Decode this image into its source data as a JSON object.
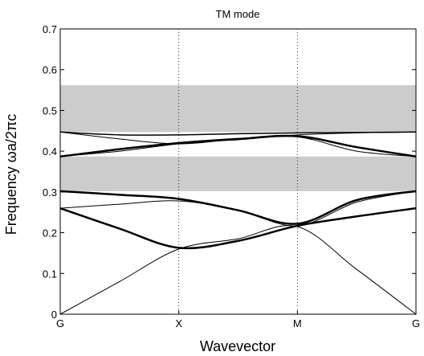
{
  "chart_data": {
    "type": "line",
    "title": "TM mode",
    "xlabel": "Wavevector",
    "ylabel": "Frequency ωa/2πc",
    "x_ticks": [
      "G",
      "X",
      "M",
      "G"
    ],
    "x_tick_positions": [
      0,
      1,
      2,
      3
    ],
    "xlim": [
      0,
      3
    ],
    "ylim": [
      0,
      0.7
    ],
    "y_ticks": [
      "0",
      "0.1",
      "0.2",
      "0.3",
      "0.4",
      "0.5",
      "0.6",
      "0.7"
    ],
    "y_tick_values": [
      0,
      0.1,
      0.2,
      0.3,
      0.4,
      0.5,
      0.6,
      0.7
    ],
    "vertical_gridlines_at": [
      1,
      2
    ],
    "grid_style": "dotted",
    "band_gaps": [
      {
        "from": 0.302,
        "to": 0.387
      },
      {
        "from": 0.447,
        "to": 0.562
      }
    ],
    "band_gap_color": "#cccccc",
    "line_color": "#000000",
    "series": [
      {
        "x": [
          0,
          0.5,
          1,
          1.5,
          2,
          2.5,
          3
        ],
        "values": [
          0.0,
          0.08,
          0.16,
          0.185,
          0.215,
          0.11,
          0.0
        ],
        "weight": 1
      },
      {
        "x": [
          0,
          0.5,
          1,
          1.5,
          2,
          2.5,
          3
        ],
        "values": [
          0.26,
          0.21,
          0.163,
          0.18,
          0.217,
          0.24,
          0.26
        ],
        "weight": 2.5
      },
      {
        "x": [
          0,
          0.5,
          1,
          1.5,
          2,
          2.5,
          3
        ],
        "values": [
          0.26,
          0.27,
          0.278,
          0.255,
          0.217,
          0.275,
          0.302
        ],
        "weight": 1
      },
      {
        "x": [
          0,
          0.5,
          1,
          1.5,
          2,
          2.5,
          3
        ],
        "values": [
          0.302,
          0.293,
          0.283,
          0.255,
          0.222,
          0.28,
          0.302
        ],
        "weight": 2.5
      },
      {
        "x": [
          0,
          0.5,
          1,
          1.5,
          2,
          2.5,
          3
        ],
        "values": [
          0.387,
          0.4,
          0.418,
          0.428,
          0.435,
          0.4,
          0.387
        ],
        "weight": 1
      },
      {
        "x": [
          0,
          0.5,
          1,
          1.5,
          2,
          2.5,
          3
        ],
        "values": [
          0.387,
          0.405,
          0.42,
          0.43,
          0.437,
          0.41,
          0.387
        ],
        "weight": 2.5
      },
      {
        "x": [
          0,
          0.5,
          1,
          1.5,
          2,
          2.5,
          3
        ],
        "values": [
          0.447,
          0.43,
          0.418,
          0.43,
          0.44,
          0.445,
          0.447
        ],
        "weight": 1
      },
      {
        "x": [
          0,
          0.5,
          1,
          1.5,
          2,
          2.5,
          3
        ],
        "values": [
          0.447,
          0.44,
          0.44,
          0.443,
          0.445,
          0.446,
          0.447
        ],
        "weight": 1.5
      }
    ]
  }
}
